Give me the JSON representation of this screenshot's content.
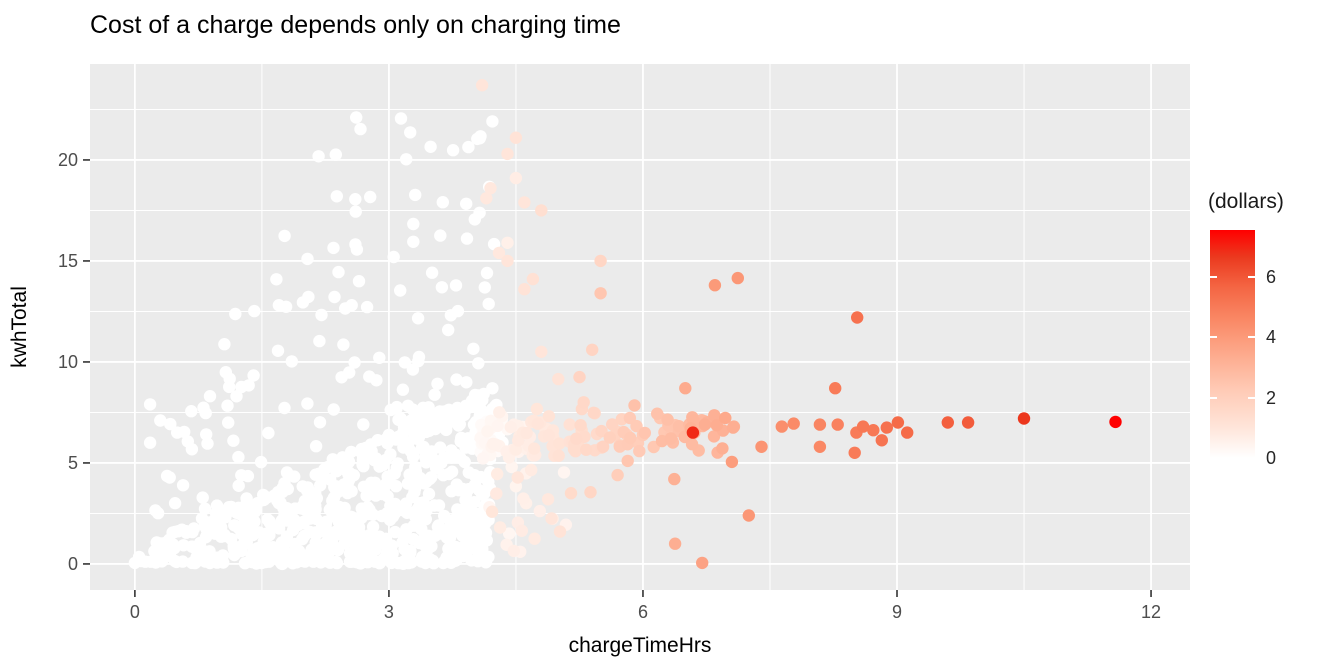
{
  "title": "Cost of a charge depends only on charging time",
  "axes": {
    "x": {
      "label": "chargeTimeHrs",
      "ticks": [
        0,
        3,
        6,
        9,
        12
      ],
      "minor": [
        1.5,
        4.5,
        7.5,
        10.5
      ],
      "domain": [
        -0.53,
        12.46
      ]
    },
    "y": {
      "label": "kwhTotal",
      "ticks": [
        0,
        5,
        10,
        15,
        20
      ],
      "minor": [
        2.5,
        7.5,
        12.5,
        17.5,
        22.5
      ],
      "domain": [
        -1.29,
        24.75
      ]
    }
  },
  "legend": {
    "title": "(dollars)",
    "ticks": [
      0,
      2,
      4,
      6
    ],
    "max": 7.56,
    "low_color": "#ffffff",
    "high_color": "#ff0000"
  },
  "colors": {
    "panel_bg": "#ebebeb",
    "grid": "#ffffff",
    "tick_mark": "#333333",
    "tick_label": "#4d4d4d",
    "axis_title": "#000000",
    "ramp_stops": [
      [
        0,
        "#ffffff"
      ],
      [
        0.14,
        "#ffe4d8"
      ],
      [
        0.3,
        "#ffcab5"
      ],
      [
        0.45,
        "#fdab8e"
      ],
      [
        0.6,
        "#fa8a67"
      ],
      [
        0.75,
        "#f46543"
      ],
      [
        0.88,
        "#eb3a1f"
      ],
      [
        1,
        "#ff0000"
      ]
    ]
  },
  "chart_data": {
    "type": "scatter",
    "title": "Cost of a charge depends only on charging time",
    "xlabel": "chargeTimeHrs",
    "ylabel": "kwhTotal",
    "color_label": "(dollars)",
    "color_range": [
      0,
      7.56
    ],
    "xlim": [
      -0.53,
      12.46
    ],
    "ylim": [
      -1.29,
      24.75
    ],
    "point_format": "[chargeTimeHrs, kwhTotal, dollars]",
    "points": [
      [
        0,
        0.05,
        0
      ],
      [
        0.05,
        0.35,
        0
      ],
      [
        0.18,
        7.9,
        0
      ],
      [
        0.3,
        7.1,
        0
      ],
      [
        0.5,
        6.5,
        0
      ],
      [
        0.18,
        6.0,
        0
      ],
      [
        1.2,
        8.3,
        0
      ],
      [
        4.1,
        23.7,
        1.0
      ],
      [
        4.5,
        21.1,
        1.1
      ],
      [
        4.4,
        20.3,
        1.0
      ],
      [
        4.5,
        19.1,
        0.7
      ],
      [
        4.2,
        18.6,
        0.9
      ],
      [
        4.15,
        18.1,
        0.9
      ],
      [
        4.6,
        17.9,
        1.0
      ],
      [
        4.8,
        17.5,
        1.3
      ],
      [
        4.4,
        15.9,
        0.6
      ],
      [
        4.3,
        15.4,
        0.9
      ],
      [
        4.4,
        15.0,
        1.0
      ],
      [
        4.7,
        14.1,
        1.2
      ],
      [
        4.6,
        13.6,
        1.1
      ],
      [
        5.5,
        15.0,
        1.7
      ],
      [
        5.5,
        13.4,
        2.4
      ],
      [
        5.4,
        10.6,
        1.8
      ],
      [
        4.8,
        10.5,
        1.0
      ],
      [
        5.25,
        9.25,
        1.8
      ],
      [
        5.0,
        9.15,
        1.1
      ],
      [
        5.3,
        8.0,
        1.6
      ],
      [
        5.9,
        7.85,
        2.6
      ],
      [
        4.45,
        4.8,
        0.4
      ],
      [
        4.5,
        3.85,
        0.45
      ],
      [
        4.42,
        1.5,
        0.35
      ],
      [
        4.55,
        0.6,
        0.5
      ],
      [
        4.62,
        3.0,
        0.6
      ],
      [
        4.68,
        4.65,
        0.8
      ],
      [
        4.72,
        1.25,
        0.8
      ],
      [
        4.88,
        3.2,
        0.9
      ],
      [
        4.92,
        2.25,
        1.0
      ],
      [
        5.02,
        1.6,
        1.1
      ],
      [
        5.15,
        3.5,
        1.5
      ],
      [
        5.38,
        3.55,
        1.7
      ],
      [
        5.7,
        4.4,
        2.1
      ],
      [
        5.82,
        5.1,
        2.4
      ],
      [
        6.85,
        13.8,
        4.0
      ],
      [
        7.12,
        14.15,
        4.1
      ],
      [
        8.53,
        12.2,
        5.3
      ],
      [
        6.5,
        8.7,
        3.4
      ],
      [
        8.27,
        8.7,
        5.0
      ],
      [
        6.37,
        4.2,
        3.2
      ],
      [
        7.25,
        2.4,
        4.1
      ],
      [
        6.38,
        1.0,
        3.3
      ],
      [
        6.7,
        0.05,
        3.7
      ],
      [
        7.05,
        5.05,
        3.9
      ],
      [
        7.4,
        5.8,
        4.2
      ],
      [
        7.64,
        6.8,
        4.4
      ],
      [
        7.78,
        6.95,
        4.5
      ],
      [
        8.09,
        6.9,
        4.7
      ],
      [
        8.09,
        5.8,
        4.6
      ],
      [
        8.3,
        6.9,
        4.8
      ],
      [
        8.5,
        5.5,
        5.0
      ],
      [
        8.52,
        6.5,
        5.0
      ],
      [
        8.6,
        6.8,
        5.1
      ],
      [
        8.72,
        6.62,
        5.1
      ],
      [
        8.82,
        6.12,
        5.2
      ],
      [
        8.88,
        6.75,
        5.3
      ],
      [
        9.01,
        7.0,
        5.5
      ],
      [
        9.12,
        6.5,
        5.5
      ],
      [
        9.6,
        7.0,
        5.8
      ],
      [
        9.84,
        7.0,
        5.9
      ],
      [
        10.5,
        7.2,
        6.7
      ],
      [
        11.58,
        7.03,
        7.56
      ],
      [
        6.59,
        6.5,
        6.9
      ]
    ],
    "clusters": [
      {
        "name": "free-baseline",
        "kind": "uniform",
        "n": 55,
        "x": [
          0,
          4.2
        ],
        "xp": 0.85,
        "y": [
          0.03,
          0.16
        ],
        "d": 0
      },
      {
        "name": "free-triangle",
        "kind": "tri",
        "n": 430,
        "x": [
          0.08,
          4.2
        ],
        "xp": 0.62,
        "env": [
          1.9,
          0.5
        ],
        "yp": 1.0,
        "d": 0
      },
      {
        "name": "free-lowfill",
        "kind": "uniform",
        "n": 120,
        "x": [
          0.8,
          4.2
        ],
        "xp": 0.7,
        "y": [
          0.1,
          2.8
        ],
        "d": 0
      },
      {
        "name": "free-ridge",
        "kind": "ridge",
        "n": 85,
        "x": [
          0.25,
          4.25
        ],
        "xp": 1,
        "env": [
          1.9,
          0.5
        ],
        "jit": 0.5,
        "d": 0
      },
      {
        "name": "free-blob",
        "kind": "uniform",
        "n": 75,
        "x": [
          3.05,
          4.35
        ],
        "xp": 0.9,
        "y": [
          5.7,
          7.9
        ],
        "d": 0
      },
      {
        "name": "free-spray",
        "kind": "spray",
        "n": 125,
        "x": [
          0.15,
          4.25
        ],
        "xp": 0.8,
        "env": [
          1.9,
          0.9
        ],
        "cap": [
          7.5,
          4,
          22.6
        ],
        "yp": 1.1,
        "d": 0
      },
      {
        "name": "paid-band",
        "kind": "band",
        "n": 150,
        "x": [
          4.08,
          7.08
        ],
        "xp": 1.65,
        "yc": 6.35,
        "ys": 1.4,
        "dm": [
          1.12,
          -4.45
        ],
        "dj": 0.25,
        "dmin": 0.12
      },
      {
        "name": "paid-lowtail",
        "kind": "uniform",
        "n": 16,
        "x": [
          4.15,
          5.2
        ],
        "xp": 1,
        "y": [
          0.4,
          4.6
        ],
        "d": 0.7,
        "dj": 0.35
      }
    ],
    "seed": 11,
    "legend_position": "right",
    "grid": true
  }
}
